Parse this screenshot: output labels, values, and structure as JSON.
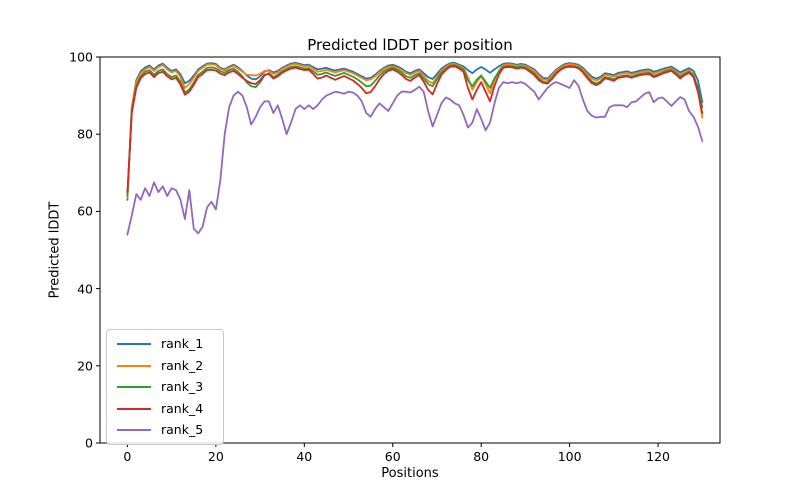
{
  "chart_data": {
    "type": "line",
    "title": "Predicted lDDT per position",
    "xlabel": "Positions",
    "ylabel": "Predicted lDDT",
    "x_ticks": [
      0,
      20,
      40,
      60,
      80,
      100,
      120
    ],
    "y_ticks": [
      0,
      20,
      40,
      60,
      80,
      100
    ],
    "xlim": [
      -6.2,
      134
    ],
    "ylim": [
      0,
      100
    ],
    "grid": false,
    "legend_position": "lower left",
    "x_start": 0,
    "x_step": 1,
    "series": [
      {
        "name": "rank_1",
        "color": "#1f77b4",
        "values": [
          63,
          87,
          94,
          96.3,
          97.3,
          97.8,
          96.8,
          97.8,
          98.3,
          97.2,
          96.4,
          96.8,
          95.5,
          93.2,
          93.8,
          95.2,
          96.8,
          97.6,
          98.3,
          98.4,
          98.2,
          97.2,
          96.8,
          97.5,
          98.0,
          97.3,
          96.4,
          95.2,
          94.4,
          94.2,
          95.0,
          96.2,
          96.6,
          96.0,
          96.4,
          97.2,
          97.8,
          98.3,
          98.5,
          98.2,
          97.9,
          98.0,
          97.4,
          96.8,
          97.0,
          97.2,
          96.8,
          96.5,
          96.8,
          97.0,
          96.6,
          96.2,
          95.6,
          95.0,
          94.4,
          94.6,
          95.4,
          96.4,
          97.2,
          97.8,
          98.0,
          97.6,
          97.0,
          96.2,
          95.8,
          96.4,
          96.8,
          95.8,
          94.8,
          94.3,
          95.6,
          97.0,
          97.8,
          98.4,
          98.5,
          98.0,
          97.6,
          96.6,
          95.8,
          96.8,
          97.4,
          96.8,
          95.9,
          96.8,
          97.6,
          98.2,
          98.4,
          98.3,
          98.0,
          98.2,
          98.0,
          97.4,
          96.8,
          95.6,
          94.6,
          94.4,
          95.6,
          96.8,
          97.6,
          98.2,
          98.4,
          98.3,
          98.0,
          97.2,
          96.0,
          94.9,
          94.4,
          94.9,
          95.8,
          95.6,
          95.3,
          95.9,
          96.1,
          96.3,
          95.9,
          96.2,
          96.5,
          96.7,
          96.8,
          96.2,
          96.5,
          96.9,
          97.2,
          97.5,
          96.8,
          96.0,
          96.6,
          97.1,
          96.4,
          94.0,
          88.3
        ]
      },
      {
        "name": "rank_2",
        "color": "#ff7f0e",
        "values": [
          63.5,
          87,
          93.5,
          95.8,
          96.8,
          97.4,
          96.4,
          97.4,
          97.9,
          96.8,
          96.0,
          96.4,
          94.8,
          92.0,
          93.0,
          94.6,
          96.4,
          97.2,
          98.0,
          98.1,
          97.9,
          96.9,
          96.5,
          97.2,
          97.7,
          97.0,
          96.2,
          95.4,
          95.3,
          95.2,
          95.6,
          96.4,
          96.4,
          95.6,
          96.0,
          96.9,
          97.5,
          98.0,
          98.2,
          97.9,
          97.6,
          97.7,
          97.0,
          96.2,
          96.4,
          96.7,
          96.3,
          96.0,
          96.3,
          96.6,
          96.2,
          95.8,
          95.2,
          94.6,
          94.0,
          94.2,
          95.0,
          96.0,
          96.9,
          97.4,
          97.6,
          97.2,
          96.6,
          95.8,
          95.4,
          96.0,
          96.4,
          95.2,
          93.8,
          93.2,
          94.8,
          96.5,
          97.4,
          98.1,
          98.2,
          97.7,
          97.2,
          94.8,
          91.5,
          93.5,
          95.0,
          93.0,
          90.6,
          94.0,
          96.5,
          97.9,
          98.1,
          98.0,
          97.7,
          97.9,
          97.7,
          97.1,
          96.4,
          95.2,
          94.2,
          94.0,
          95.2,
          96.5,
          97.3,
          97.9,
          98.1,
          98.0,
          97.7,
          96.8,
          95.5,
          94.4,
          93.9,
          94.4,
          95.4,
          95.2,
          94.9,
          95.5,
          95.7,
          95.9,
          95.5,
          95.8,
          96.1,
          96.3,
          96.4,
          95.7,
          96.1,
          96.5,
          96.8,
          97.1,
          96.3,
          95.4,
          96.1,
          96.6,
          95.6,
          91.5,
          84.3
        ]
      },
      {
        "name": "rank_3",
        "color": "#2ca02c",
        "values": [
          64,
          86,
          92.5,
          95.0,
          96.2,
          96.6,
          95.4,
          96.4,
          96.8,
          95.6,
          94.8,
          95.2,
          93.6,
          90.8,
          91.6,
          93.4,
          95.4,
          96.2,
          97.2,
          97.3,
          97.1,
          96.3,
          95.9,
          96.6,
          97.0,
          96.2,
          95.0,
          93.4,
          92.4,
          92.2,
          93.4,
          95.2,
          95.8,
          94.8,
          95.4,
          96.3,
          96.9,
          97.4,
          97.6,
          97.3,
          97.0,
          97.1,
          96.3,
          95.4,
          95.6,
          96.0,
          95.5,
          95.1,
          95.5,
          95.9,
          95.4,
          94.9,
          94.2,
          93.4,
          92.4,
          92.6,
          93.8,
          95.2,
          96.3,
          96.9,
          97.2,
          96.7,
          96.0,
          95.0,
          94.6,
          95.3,
          95.8,
          94.4,
          93.0,
          92.4,
          94.2,
          96.0,
          97.0,
          97.8,
          97.9,
          97.4,
          96.8,
          94.0,
          92.4,
          94.2,
          95.2,
          93.6,
          92.0,
          94.5,
          96.2,
          97.5,
          97.7,
          97.6,
          97.3,
          97.5,
          97.3,
          96.6,
          95.8,
          94.5,
          93.6,
          93.4,
          94.6,
          96.0,
          96.9,
          97.5,
          97.7,
          97.6,
          97.3,
          96.3,
          94.9,
          93.7,
          93.1,
          93.7,
          94.8,
          94.6,
          94.2,
          94.9,
          95.1,
          95.3,
          94.9,
          95.3,
          95.6,
          95.8,
          95.9,
          95.1,
          95.5,
          96.0,
          96.4,
          96.7,
          95.9,
          94.9,
          95.6,
          96.2,
          95.2,
          92.0,
          87.0
        ]
      },
      {
        "name": "rank_4",
        "color": "#d62728",
        "values": [
          65,
          85.5,
          92,
          94.5,
          95.6,
          96.0,
          94.8,
          95.8,
          96.2,
          95.0,
          94.2,
          94.6,
          92.8,
          90.2,
          91.0,
          92.8,
          94.8,
          95.6,
          96.6,
          96.7,
          96.5,
          95.7,
          95.3,
          96.0,
          96.4,
          95.6,
          94.6,
          93.8,
          93.2,
          93.0,
          94.0,
          95.4,
          95.6,
          94.4,
          95.0,
          95.9,
          96.5,
          97.0,
          97.2,
          96.9,
          96.6,
          96.7,
          95.6,
          94.4,
          94.7,
          95.2,
          94.6,
          94.1,
          94.6,
          95.1,
          94.5,
          93.9,
          93.0,
          92.0,
          90.6,
          90.9,
          92.4,
          94.2,
          95.6,
          96.4,
          96.8,
          96.2,
          95.4,
          94.3,
          93.8,
          94.7,
          95.3,
          93.6,
          91.5,
          90.3,
          93.0,
          95.4,
          96.6,
          97.5,
          97.6,
          97.0,
          96.2,
          92.0,
          89.0,
          91.5,
          93.5,
          91.0,
          88.5,
          92.5,
          95.5,
          97.2,
          97.4,
          97.3,
          97.0,
          97.2,
          97.0,
          96.2,
          95.3,
          94.0,
          93.3,
          93.1,
          94.3,
          95.7,
          96.7,
          97.3,
          97.5,
          97.4,
          97.1,
          96.0,
          94.5,
          93.2,
          92.7,
          93.3,
          94.5,
          94.2,
          93.8,
          94.6,
          94.8,
          95.0,
          94.6,
          95.0,
          95.3,
          95.5,
          95.6,
          94.8,
          95.2,
          95.7,
          96.1,
          96.4,
          95.5,
          94.4,
          95.3,
          95.9,
          94.8,
          91.0,
          85.5
        ]
      },
      {
        "name": "rank_5",
        "color": "#9467bd",
        "values": [
          54,
          59,
          64.5,
          63,
          66,
          64,
          67.5,
          65,
          66.5,
          64,
          66,
          65.5,
          63,
          58,
          65.5,
          55.5,
          54.3,
          56,
          61,
          62.5,
          60.5,
          68,
          80,
          87,
          90,
          91,
          90,
          87,
          82.5,
          84.5,
          87,
          88.5,
          88.5,
          85.5,
          87.5,
          84,
          80,
          83,
          86.5,
          87.5,
          86.5,
          87.5,
          86.5,
          87.5,
          89,
          90,
          90.5,
          91,
          90.8,
          90.5,
          91,
          90.8,
          90,
          88.5,
          85.5,
          84.5,
          86.5,
          88,
          87,
          86,
          88,
          90,
          91,
          91,
          90.8,
          91.5,
          92.3,
          91,
          86,
          82,
          85,
          88,
          89.5,
          89,
          88,
          87.5,
          85,
          81.7,
          83,
          86.5,
          84,
          81,
          83,
          88,
          92,
          93.5,
          93.2,
          93.5,
          93.2,
          93.5,
          93,
          92,
          91,
          89,
          90.5,
          92,
          93,
          93.5,
          93,
          92.5,
          92,
          94,
          92.5,
          89,
          86,
          84.8,
          84.3,
          84.5,
          84.5,
          87,
          87.5,
          87.5,
          87.5,
          87,
          88.3,
          88.5,
          89.5,
          90.5,
          90.9,
          88.3,
          89.3,
          89.5,
          88.5,
          87.3,
          88.5,
          89.6,
          89,
          86,
          84.5,
          82,
          78.2
        ]
      }
    ]
  }
}
